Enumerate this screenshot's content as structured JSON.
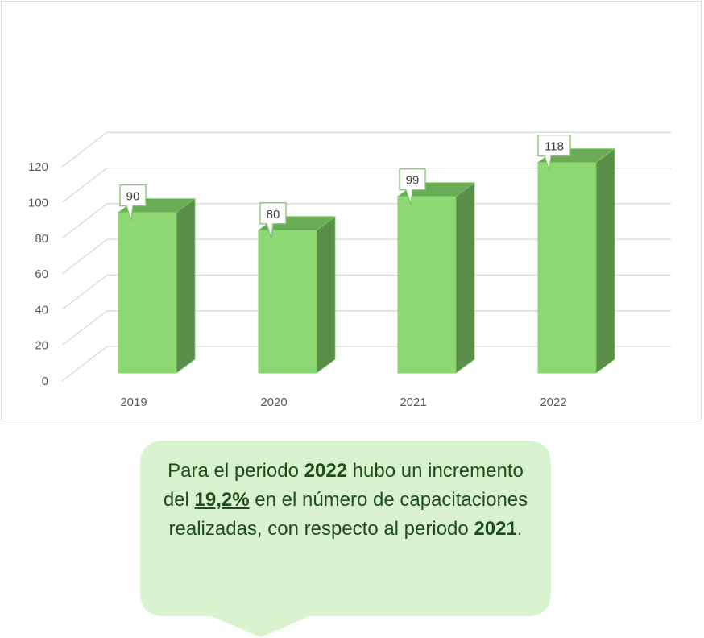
{
  "chart_data": {
    "type": "bar",
    "style": "3d-column",
    "categories": [
      "2019",
      "2020",
      "2021",
      "2022"
    ],
    "values": [
      90,
      80,
      99,
      118
    ],
    "data_labels": [
      "90",
      "80",
      "99",
      "118"
    ],
    "ylim": [
      0,
      120
    ],
    "yticks": [
      0,
      20,
      40,
      60,
      80,
      100,
      120
    ],
    "grid": true,
    "legend": "none",
    "title": "",
    "xlabel": "",
    "ylabel": "",
    "colors": {
      "front": "#8ed973",
      "side": "#5a8f4a",
      "top": "#6aab55",
      "label_border": "#7cc864",
      "grid": "#d9d9d9"
    }
  },
  "callout": {
    "line1_pre": "Para el periodo ",
    "year_a": "2022",
    "line1_post": " hubo un incremento del ",
    "percent": "19,2%",
    "mid": " en el número de capacitaciones realizadas, con respecto al periodo ",
    "year_b": "2021",
    "end": ".",
    "colors": {
      "fill": "#d9f2d0",
      "text": "#1f4e1a"
    }
  }
}
